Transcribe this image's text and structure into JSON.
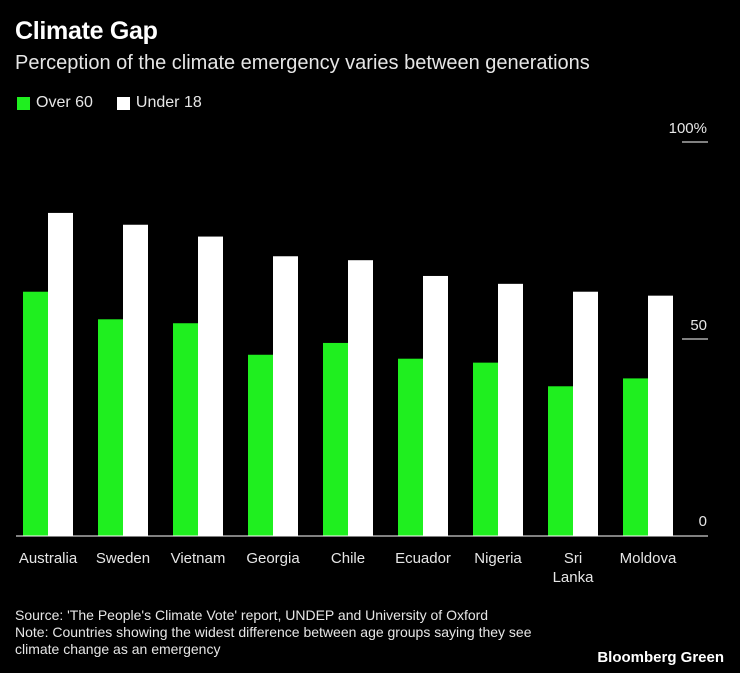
{
  "header": {
    "title": "Climate Gap",
    "subtitle": "Perception of the climate emergency varies between generations"
  },
  "legend": {
    "items": [
      {
        "label": "Over 60",
        "color": "#1fef1f"
      },
      {
        "label": "Under 18",
        "color": "#ffffff"
      }
    ]
  },
  "chart_data": {
    "type": "bar",
    "title": "Climate Gap",
    "subtitle": "Perception of the climate emergency varies between generations",
    "categories": [
      [
        "Australia"
      ],
      [
        "Sweden"
      ],
      [
        "Vietnam"
      ],
      [
        "Georgia"
      ],
      [
        "Chile"
      ],
      [
        "Ecuador"
      ],
      [
        "Nigeria"
      ],
      [
        "Sri",
        "Lanka"
      ],
      [
        "Moldova"
      ]
    ],
    "series": [
      {
        "name": "Over 60",
        "color": "#1fef1f",
        "values": [
          62,
          55,
          54,
          46,
          49,
          45,
          44,
          38,
          40
        ]
      },
      {
        "name": "Under 18",
        "color": "#ffffff",
        "values": [
          82,
          79,
          76,
          71,
          70,
          66,
          64,
          62,
          61
        ]
      }
    ],
    "yticks": [
      {
        "value": 100,
        "label": "100%"
      },
      {
        "value": 50,
        "label": "50"
      },
      {
        "value": 0,
        "label": "0"
      }
    ],
    "ylim": [
      0,
      100
    ],
    "xlabel": "",
    "ylabel": "",
    "legend_position": "top-left"
  },
  "footer": {
    "source": "Source: 'The People's Climate Vote' report, UNDEP and University of Oxford",
    "note": "Note: Countries showing the widest difference between age groups saying they see climate change as an emergency",
    "brand": "Bloomberg Green"
  }
}
